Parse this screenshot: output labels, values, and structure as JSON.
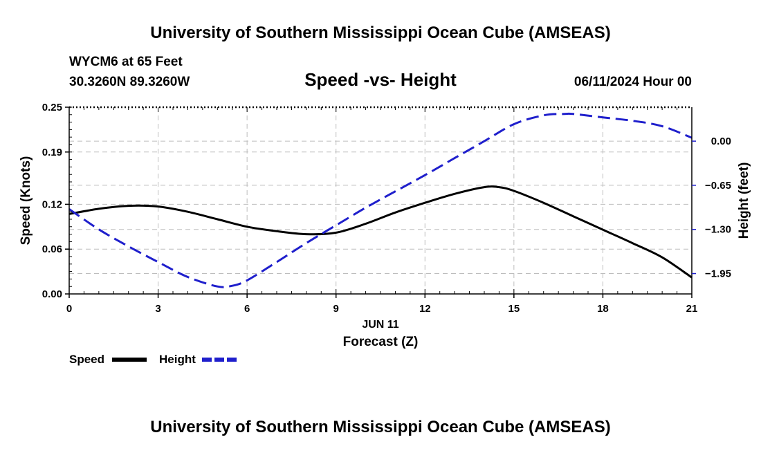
{
  "header": {
    "title": "University of Southern Mississippi Ocean Cube (AMSEAS)",
    "footer_title": "University of Southern Mississippi Ocean Cube (AMSEAS)",
    "station": "WYCM6 at 65 Feet",
    "coords": "30.3260N  89.3260W",
    "datetime": "06/11/2024 Hour 00"
  },
  "chart_data": {
    "type": "line",
    "title": "Speed -vs- Height",
    "xlabel": "Forecast (Z)",
    "xlabel_date": "JUN 11",
    "ylabel": "Speed (Knots)",
    "ylabel_right": "Height (feet)",
    "xlim": [
      0,
      21
    ],
    "ylim": [
      0,
      0.25
    ],
    "ylim_right": [
      -2.25,
      0.5
    ],
    "x_ticks": [
      0,
      3,
      6,
      9,
      12,
      15,
      18,
      21
    ],
    "x_tick_labels": [
      "0",
      "3",
      "6",
      "9",
      "12",
      "15",
      "18",
      "21"
    ],
    "y_ticks": [
      0,
      0.06,
      0.12,
      0.19,
      0.25
    ],
    "y_tick_labels": [
      "0.00",
      "0.06",
      "0.12",
      "0.19",
      "0.25"
    ],
    "y_right_ticks": [
      0,
      -0.65,
      -1.3,
      -1.95
    ],
    "y_right_tick_labels": [
      "0.00",
      "−0.65",
      "−1.30",
      "−1.95"
    ],
    "grid": true,
    "series": [
      {
        "name": "Speed",
        "axis": "left",
        "color": "#000000",
        "dash": "solid",
        "x": [
          0,
          1,
          2,
          3,
          4,
          5,
          6,
          7,
          8,
          9,
          10,
          11,
          12,
          13,
          14,
          14.5,
          15,
          16,
          17,
          18,
          19,
          20,
          21
        ],
        "values": [
          0.107,
          0.114,
          0.118,
          0.117,
          0.11,
          0.1,
          0.09,
          0.084,
          0.08,
          0.082,
          0.094,
          0.109,
          0.122,
          0.134,
          0.143,
          0.143,
          0.138,
          0.122,
          0.104,
          0.086,
          0.068,
          0.049,
          0.022
        ]
      },
      {
        "name": "Height",
        "axis": "right",
        "color": "#1f1fcc",
        "dash": "dashed",
        "x": [
          0,
          1,
          2,
          3,
          4,
          5,
          5.5,
          6,
          7,
          8,
          9,
          10,
          11,
          12,
          13,
          14,
          15,
          16,
          16.7,
          17,
          18,
          19,
          20,
          21
        ],
        "values": [
          -1.0,
          -1.3,
          -1.55,
          -1.78,
          -2.0,
          -2.14,
          -2.13,
          -2.05,
          -1.78,
          -1.5,
          -1.24,
          -0.98,
          -0.74,
          -0.5,
          -0.25,
          0.0,
          0.25,
          0.38,
          0.4,
          0.4,
          0.35,
          0.3,
          0.22,
          0.05
        ]
      }
    ]
  },
  "legend": {
    "speed_label": "Speed",
    "height_label": "Height"
  }
}
